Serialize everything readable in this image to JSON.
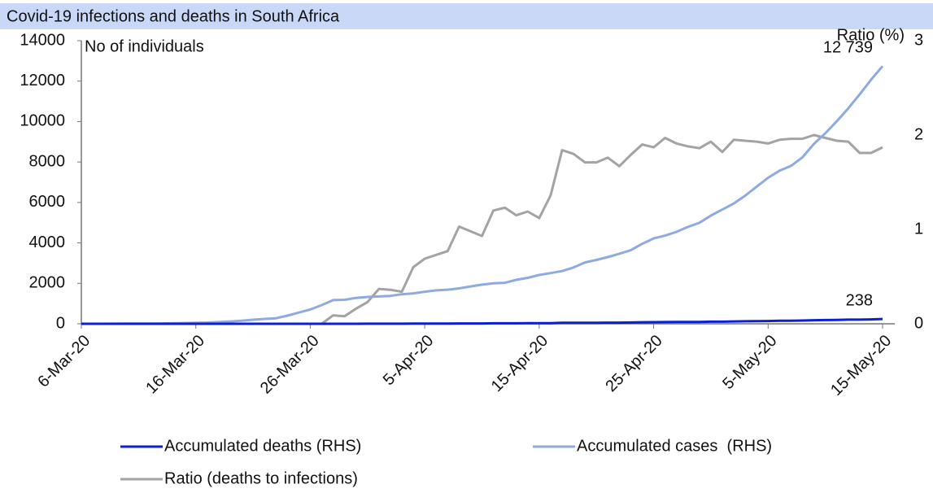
{
  "chart_data": {
    "type": "line",
    "title": "Covid-19 infections and deaths in South Africa",
    "y_label": "No of individuals",
    "y2_label": "Ratio (%)",
    "categories": [
      "6-Mar-20",
      null,
      null,
      null,
      null,
      null,
      null,
      null,
      null,
      null,
      "16-Mar-20",
      null,
      null,
      null,
      null,
      null,
      null,
      null,
      null,
      null,
      "26-Mar-20",
      null,
      null,
      null,
      null,
      null,
      null,
      null,
      null,
      null,
      "5-Apr-20",
      null,
      null,
      null,
      null,
      null,
      null,
      null,
      null,
      null,
      "15-Apr-20",
      null,
      null,
      null,
      null,
      null,
      null,
      null,
      null,
      null,
      "25-Apr-20",
      null,
      null,
      null,
      null,
      null,
      null,
      null,
      null,
      null,
      "5-May-20",
      null,
      null,
      null,
      null,
      null,
      null,
      null,
      null,
      null,
      "15-May-20"
    ],
    "series": [
      {
        "name": "Accumulated deaths (RHS)",
        "color": "#0c1fd4",
        "values": [
          0,
          0,
          0,
          0,
          0,
          0,
          0,
          0,
          0,
          0,
          0,
          0,
          0,
          0,
          0,
          0,
          0,
          0,
          0,
          0,
          0,
          0,
          1,
          1,
          2,
          3,
          5,
          5,
          5,
          9,
          11,
          12,
          13,
          18,
          18,
          18,
          24,
          25,
          25,
          27,
          27,
          34,
          48,
          50,
          52,
          54,
          58,
          58,
          65,
          75,
          79,
          86,
          87,
          90,
          93,
          103,
          103,
          116,
          123,
          131,
          138,
          148,
          153,
          161,
          178,
          186,
          194,
          206,
          206,
          219,
          238
        ],
        "value_labels": [
          null,
          null,
          null,
          null,
          null,
          null,
          null,
          null,
          null,
          null,
          null,
          null,
          null,
          null,
          null,
          null,
          null,
          null,
          null,
          null,
          null,
          null,
          null,
          null,
          null,
          null,
          null,
          null,
          null,
          null,
          null,
          null,
          null,
          null,
          null,
          null,
          null,
          null,
          null,
          null,
          null,
          null,
          null,
          null,
          null,
          null,
          null,
          null,
          null,
          null,
          null,
          null,
          null,
          null,
          null,
          null,
          null,
          null,
          null,
          null,
          null,
          null,
          null,
          null,
          null,
          null,
          null,
          null,
          null,
          null,
          "238"
        ]
      },
      {
        "name": "Accumulated cases  (RHS)",
        "color": "#8eaae0",
        "values": [
          1,
          1,
          2,
          3,
          7,
          7,
          13,
          16,
          24,
          38,
          51,
          62,
          85,
          116,
          150,
          202,
          240,
          274,
          402,
          554,
          709,
          927,
          1170,
          1187,
          1280,
          1326,
          1353,
          1380,
          1462,
          1505,
          1585,
          1655,
          1686,
          1749,
          1845,
          1934,
          2003,
          2028,
          2173,
          2272,
          2415,
          2506,
          2605,
          2783,
          3034,
          3158,
          3300,
          3465,
          3635,
          3953,
          4220,
          4361,
          4546,
          4793,
          4996,
          5350,
          5647,
          5951,
          6336,
          6783,
          7220,
          7572,
          7808,
          8232,
          8895,
          9420,
          10015,
          10652,
          11350,
          12074,
          12739
        ],
        "value_labels": [
          null,
          null,
          null,
          null,
          null,
          null,
          null,
          null,
          null,
          null,
          null,
          null,
          null,
          null,
          null,
          null,
          null,
          null,
          null,
          null,
          null,
          null,
          null,
          null,
          null,
          null,
          null,
          null,
          null,
          null,
          null,
          null,
          null,
          null,
          null,
          null,
          null,
          null,
          null,
          null,
          null,
          null,
          null,
          null,
          null,
          null,
          null,
          null,
          null,
          null,
          null,
          null,
          null,
          null,
          null,
          null,
          null,
          null,
          null,
          null,
          null,
          null,
          null,
          null,
          null,
          null,
          null,
          null,
          null,
          null,
          "12 739"
        ]
      },
      {
        "name": "Ratio (deaths to infections)",
        "color": "#a3a3a3",
        "axis": "y2",
        "values": [
          0,
          0,
          0,
          0,
          0,
          0,
          0,
          0,
          0,
          0,
          0,
          0,
          0,
          0,
          0,
          0,
          0,
          0,
          0,
          0,
          0,
          0,
          0.09,
          0.08,
          0.16,
          0.23,
          0.37,
          0.36,
          0.34,
          0.6,
          0.69,
          0.73,
          0.77,
          1.03,
          0.98,
          0.93,
          1.2,
          1.23,
          1.15,
          1.19,
          1.12,
          1.36,
          1.84,
          1.8,
          1.71,
          1.71,
          1.76,
          1.67,
          1.79,
          1.9,
          1.87,
          1.97,
          1.91,
          1.88,
          1.86,
          1.93,
          1.82,
          1.95,
          1.94,
          1.93,
          1.91,
          1.95,
          1.96,
          1.96,
          2.0,
          1.97,
          1.94,
          1.93,
          1.81,
          1.81,
          1.87
        ]
      }
    ],
    "ylim": [
      0,
      14000
    ],
    "yticks": [
      0,
      2000,
      4000,
      6000,
      8000,
      10000,
      12000,
      14000
    ],
    "y2lim": [
      0,
      3
    ],
    "y2ticks": [
      0,
      1,
      2,
      3
    ],
    "grid": false
  }
}
